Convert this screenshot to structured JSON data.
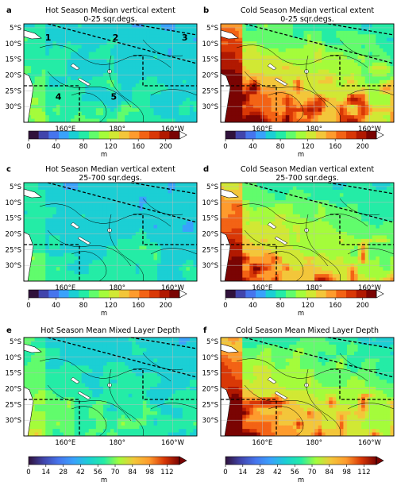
{
  "chart_data": {
    "type": "heatmap",
    "map_lat_ticks": [
      "5°S",
      "10°S",
      "15°S",
      "20°S",
      "25°S",
      "30°S"
    ],
    "map_lon_ticks": [
      "160°E",
      "180°",
      "160°W"
    ],
    "region_numbers": [
      "1",
      "2",
      "3",
      "4",
      "5"
    ],
    "panels": [
      {
        "letter": "a",
        "title": "Hot Season Median vertical extent",
        "subtitle": "0-25 sqr.degs.",
        "colorbar": "extent",
        "intensity": 0.12,
        "show_regions": true
      },
      {
        "letter": "b",
        "title": "Cold Season Median vertical extent",
        "subtitle": "0-25 sqr.degs.",
        "colorbar": "extent",
        "intensity": 0.55,
        "show_regions": false
      },
      {
        "letter": "c",
        "title": "Hot Season Median vertical extent",
        "subtitle": "25-700 sqr.degs.",
        "colorbar": "extent",
        "intensity": 0.1,
        "show_regions": false
      },
      {
        "letter": "d",
        "title": "Cold Season Median vertical extent",
        "subtitle": "25-700 sqr.degs.",
        "colorbar": "extent",
        "intensity": 0.45,
        "show_regions": false
      },
      {
        "letter": "e",
        "title": "Hot Season Mean Mixed Layer Depth",
        "subtitle": "",
        "colorbar": "mld",
        "intensity": 0.15,
        "show_regions": false
      },
      {
        "letter": "f",
        "title": "Cold Season Mean Mixed Layer Depth",
        "subtitle": "",
        "colorbar": "mld",
        "intensity": 0.5,
        "show_regions": false
      }
    ],
    "colorbars": {
      "extent": {
        "ticks": [
          "0",
          "40",
          "80",
          "120",
          "160",
          "200"
        ],
        "range": [
          0,
          220
        ],
        "colors": [
          "#30123b",
          "#4145ab",
          "#4675ed",
          "#39a2fc",
          "#1bcfd4",
          "#24eca6",
          "#61fc6c",
          "#a4fc3b",
          "#d1e834",
          "#f3c63a",
          "#fe9b2d",
          "#f36315",
          "#d93806",
          "#b11901",
          "#7a0403"
        ],
        "unit": "m"
      },
      "mld": {
        "ticks": [
          "0",
          "14",
          "28",
          "42",
          "56",
          "70",
          "84",
          "98",
          "112"
        ],
        "range": [
          0,
          122
        ],
        "unit": "m"
      }
    }
  }
}
